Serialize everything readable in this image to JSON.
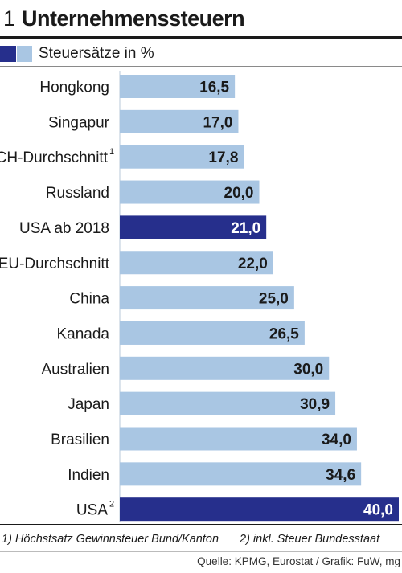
{
  "header": {
    "number": "1",
    "title": "Unternehmenssteuern"
  },
  "legend": {
    "label": "Steuersätze in %"
  },
  "colors": {
    "highlight": "#262f8c",
    "normal": "#a9c6e3",
    "label_on_dark": "#ffffff",
    "label_on_light": "#1a1a1a"
  },
  "chart_data": {
    "type": "bar",
    "orientation": "horizontal",
    "title": "Unternehmenssteuern",
    "series": [
      {
        "name": "Steuersätze in %",
        "values": [
          16.5,
          17.0,
          17.8,
          20.0,
          21.0,
          22.0,
          25.0,
          26.5,
          30.0,
          30.9,
          34.0,
          34.6,
          40.0
        ]
      }
    ],
    "categories": [
      "Hongkong",
      "Singapur",
      "CH-Durchschnitt",
      "Russland",
      "USA ab 2018",
      "EU-Durchschnitt",
      "China",
      "Kanada",
      "Australien",
      "Japan",
      "Brasilien",
      "Indien",
      "USA"
    ],
    "superscripts": [
      "",
      "",
      "1",
      "",
      "",
      "",
      "",
      "",
      "",
      "",
      "",
      "",
      "2"
    ],
    "value_labels": [
      "16,5",
      "17,0",
      "17,8",
      "20,0",
      "21,0",
      "22,0",
      "25,0",
      "26,5",
      "30,0",
      "30,9",
      "34,0",
      "34,6",
      "40,0"
    ],
    "highlighted": [
      false,
      false,
      false,
      false,
      true,
      false,
      false,
      false,
      false,
      false,
      false,
      false,
      true
    ],
    "xlim": [
      0,
      40
    ],
    "grid": false,
    "legend_position": "top-left"
  },
  "footnotes": [
    "1) Höchstsatz Gewinnsteuer Bund/Kanton",
    "2) inkl. Steuer Bundesstaat"
  ],
  "source": "Quelle: KPMG, Eurostat / Grafik: FuW, mg"
}
